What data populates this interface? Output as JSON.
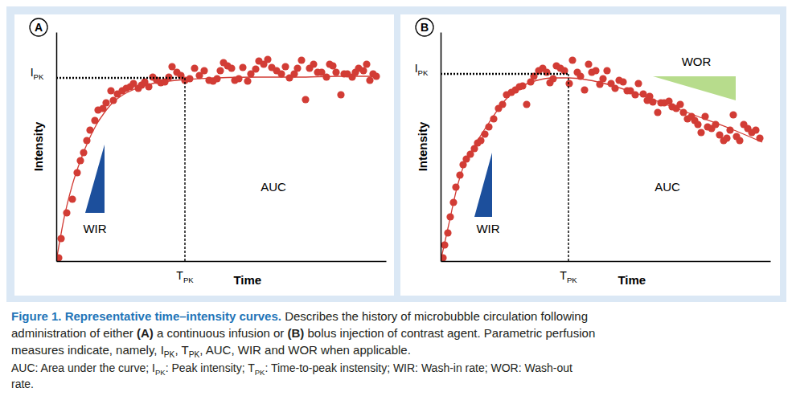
{
  "chart_data": [
    {
      "type": "scatter",
      "title": "A",
      "x_label": "Time",
      "y_label": "Intensity",
      "xlim": [
        0,
        410
      ],
      "ylim": [
        0,
        285
      ],
      "xticks": [],
      "yticks": [],
      "tick_labels": false,
      "grid": false,
      "series": [
        {
          "type": "scatter",
          "color": "#d23c35",
          "marker": "circle",
          "x": [
            3,
            6,
            13,
            20,
            26,
            30,
            34,
            38,
            42,
            48,
            52,
            58,
            62,
            68,
            71,
            76,
            82,
            87,
            92,
            96,
            102,
            106,
            110,
            115,
            120,
            125,
            130,
            135,
            140,
            144,
            150,
            155,
            160,
            166,
            172,
            178,
            184,
            190,
            195,
            200,
            204,
            208,
            213,
            218,
            222,
            227,
            232,
            238,
            242,
            248,
            252,
            258,
            263,
            268,
            274,
            280,
            285,
            290,
            296,
            300,
            305,
            310,
            315,
            320,
            325,
            330,
            336,
            340,
            344,
            348,
            354,
            358,
            362,
            368,
            372,
            376,
            382,
            386,
            390,
            394,
            398
          ],
          "values": [
            4,
            28,
            60,
            77,
            110,
            125,
            135,
            150,
            163,
            175,
            188,
            190,
            197,
            212,
            200,
            208,
            212,
            215,
            217,
            221,
            215,
            219,
            223,
            217,
            229,
            225,
            222,
            223,
            229,
            242,
            235,
            231,
            225,
            227,
            240,
            231,
            237,
            225,
            224,
            227,
            237,
            247,
            243,
            240,
            225,
            227,
            241,
            224,
            233,
            239,
            249,
            245,
            251,
            241,
            237,
            233,
            242,
            228,
            233,
            240,
            250,
            201,
            240,
            245,
            235,
            235,
            229,
            245,
            243,
            235,
            207,
            233,
            233,
            229,
            235,
            240,
            237,
            245,
            225,
            233,
            230
          ]
        },
        {
          "type": "line",
          "color": "#d23c35",
          "line_style": "solid",
          "x": [
            0,
            10,
            20,
            30,
            40,
            50,
            60,
            70,
            80,
            100,
            120,
            140,
            160,
            200,
            250,
            300,
            350,
            400
          ],
          "values": [
            0,
            55,
            95,
            125,
            150,
            170,
            185,
            197,
            205,
            215,
            221,
            224,
            226,
            228,
            229,
            229,
            230,
            230
          ]
        }
      ],
      "peak": {
        "x": 160,
        "y": 228,
        "x_label": {
          "text": "T",
          "sub": "PK"
        },
        "y_label": {
          "text": "I",
          "sub": "PK"
        }
      },
      "annotations": {
        "auc": "AUC",
        "wir": "WIR"
      }
    },
    {
      "type": "scatter",
      "title": "B",
      "x_label": "Time",
      "y_label": "Intensity",
      "xlim": [
        0,
        410
      ],
      "ylim": [
        0,
        285
      ],
      "xticks": [],
      "yticks": [],
      "tick_labels": false,
      "grid": false,
      "series": [
        {
          "type": "scatter",
          "color": "#d23c35",
          "marker": "circle",
          "x": [
            3,
            5,
            9,
            12,
            16,
            19,
            24,
            28,
            32,
            37,
            42,
            46,
            50,
            55,
            60,
            66,
            72,
            77,
            82,
            88,
            93,
            98,
            102,
            107,
            112,
            116,
            122,
            127,
            132,
            136,
            140,
            144,
            149,
            154,
            160,
            164,
            170,
            174,
            179,
            184,
            188,
            193,
            198,
            202,
            207,
            212,
            217,
            222,
            227,
            232,
            236,
            242,
            246,
            252,
            257,
            260,
            264,
            270,
            274,
            278,
            284,
            288,
            293,
            298,
            302,
            307,
            312,
            316,
            320,
            324,
            329,
            332,
            337,
            342,
            347,
            352,
            356,
            360,
            364,
            368,
            372,
            377,
            382,
            387,
            392,
            397
          ],
          "values": [
            4,
            20,
            35,
            55,
            73,
            92,
            107,
            120,
            127,
            133,
            140,
            147,
            150,
            158,
            167,
            177,
            190,
            195,
            207,
            210,
            213,
            217,
            218,
            195,
            223,
            230,
            237,
            240,
            235,
            222,
            227,
            243,
            240,
            237,
            221,
            250,
            235,
            230,
            213,
            245,
            235,
            237,
            220,
            227,
            237,
            221,
            215,
            225,
            223,
            212,
            212,
            207,
            221,
            208,
            200,
            205,
            198,
            185,
            197,
            197,
            199,
            192,
            190,
            195,
            185,
            177,
            180,
            175,
            170,
            160,
            180,
            167,
            165,
            170,
            157,
            150,
            153,
            163,
            182,
            155,
            150,
            170,
            165,
            160,
            163,
            153
          ]
        },
        {
          "type": "line",
          "color": "#d23c35",
          "line_style": "solid",
          "x": [
            0,
            10,
            20,
            30,
            40,
            60,
            80,
            100,
            120,
            140,
            160,
            180,
            200,
            240,
            280,
            320,
            360,
            400
          ],
          "values": [
            0,
            45,
            90,
            122,
            140,
            172,
            200,
            217,
            225,
            228,
            228,
            226,
            222,
            210,
            195,
            180,
            165,
            148
          ]
        }
      ],
      "peak": {
        "x": 159,
        "y": 233,
        "x_label": {
          "text": "T",
          "sub": "PK"
        },
        "y_label": {
          "text": "I",
          "sub": "PK"
        }
      },
      "annotations": {
        "auc": "AUC",
        "wir": "WIR",
        "wor": "WOR"
      }
    }
  ],
  "caption": {
    "lines": [
      [
        {
          "text": "Figure 1. Representative time–intensity curves.",
          "bold": true,
          "color": "#1f75b8"
        },
        {
          "text": " Describes the history of microbubble circulation following"
        }
      ],
      [
        {
          "text": "administration of either "
        },
        {
          "text": "(A)",
          "bold": true
        },
        {
          "text": " a continuous infusion or "
        },
        {
          "text": "(B)",
          "bold": true
        },
        {
          "text": " bolus injection of contrast agent. Parametric perfusion"
        }
      ],
      [
        {
          "text": "measures indicate, namely, I"
        },
        {
          "text": "PK",
          "sub": true
        },
        {
          "text": ", T"
        },
        {
          "text": "PK",
          "sub": true
        },
        {
          "text": ", AUC, WIR and WOR when applicable."
        }
      ],
      [
        {
          "text": "AUC: Area under the curve; I"
        },
        {
          "text": "PK",
          "sub": true
        },
        {
          "text": ": Peak intensity; T"
        },
        {
          "text": "PK",
          "sub": true
        },
        {
          "text": ": Time-to-peak instensity; WIR: Wash-in rate; WOR: Wash-out"
        }
      ],
      [
        {
          "text": "rate."
        }
      ]
    ]
  }
}
